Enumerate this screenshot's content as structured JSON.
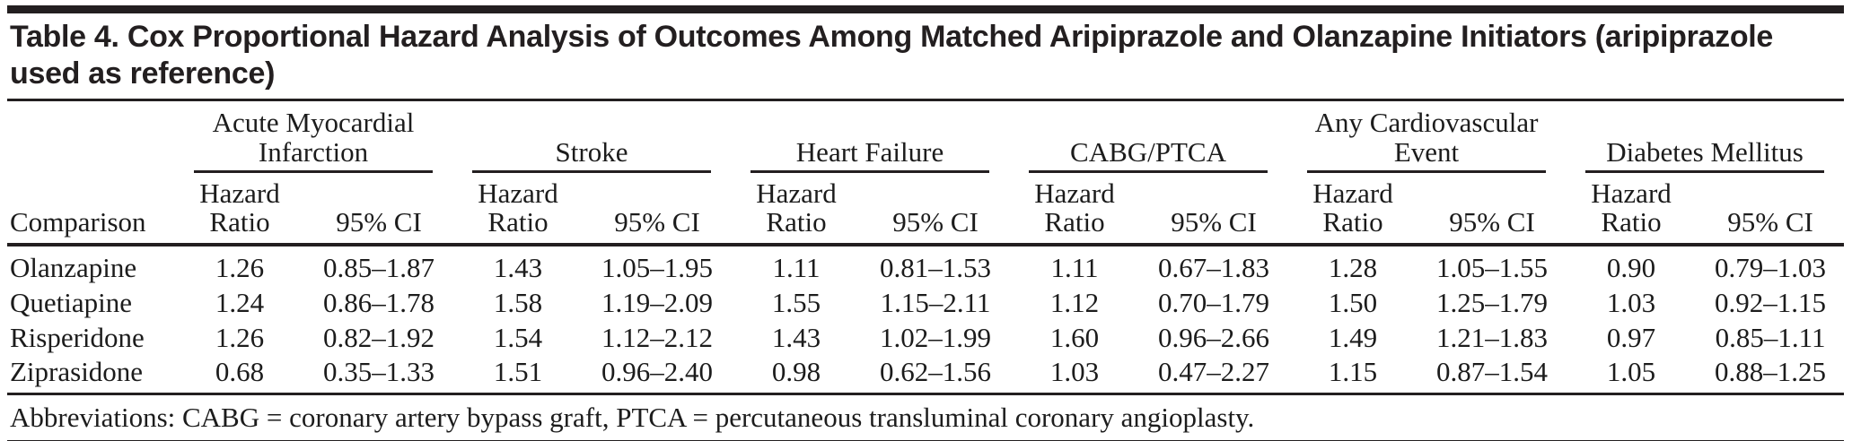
{
  "title": {
    "line1": "Table 4. Cox Proportional Hazard Analysis of Outcomes Among Matched Aripiprazole and Olanzapine Initiators (aripiprazole",
    "line2": "used as reference)"
  },
  "table": {
    "comparison_label": "Comparison",
    "subheader": {
      "hazard_ratio": "Hazard Ratio",
      "ci": "95% CI"
    },
    "groups": [
      {
        "label": "Acute Myocardial Infarction"
      },
      {
        "label": "Stroke"
      },
      {
        "label": "Heart Failure"
      },
      {
        "label": "CABG/PTCA"
      },
      {
        "label": "Any Cardiovascular Event"
      },
      {
        "label": "Diabetes Mellitus"
      }
    ],
    "rows": [
      {
        "comparison": "Olanzapine",
        "values": [
          "1.26",
          "0.85–1.87",
          "1.43",
          "1.05–1.95",
          "1.11",
          "0.81–1.53",
          "1.11",
          "0.67–1.83",
          "1.28",
          "1.05–1.55",
          "0.90",
          "0.79–1.03"
        ]
      },
      {
        "comparison": "Quetiapine",
        "values": [
          "1.24",
          "0.86–1.78",
          "1.58",
          "1.19–2.09",
          "1.55",
          "1.15–2.11",
          "1.12",
          "0.70–1.79",
          "1.50",
          "1.25–1.79",
          "1.03",
          "0.92–1.15"
        ]
      },
      {
        "comparison": "Risperidone",
        "values": [
          "1.26",
          "0.82–1.92",
          "1.54",
          "1.12–2.12",
          "1.43",
          "1.02–1.99",
          "1.60",
          "0.96–2.66",
          "1.49",
          "1.21–1.83",
          "0.97",
          "0.85–1.11"
        ]
      },
      {
        "comparison": "Ziprasidone",
        "values": [
          "0.68",
          "0.35–1.33",
          "1.51",
          "0.96–2.40",
          "0.98",
          "0.62–1.56",
          "1.03",
          "0.47–2.27",
          "1.15",
          "0.87–1.54",
          "1.05",
          "0.88–1.25"
        ]
      }
    ]
  },
  "footnote": "Abbreviations: CABG = coronary artery bypass graft, PTCA = percutaneous transluminal coronary angioplasty.",
  "colors": {
    "rule": "#231f20",
    "text": "#1c1c1c",
    "background": "#ffffff"
  }
}
